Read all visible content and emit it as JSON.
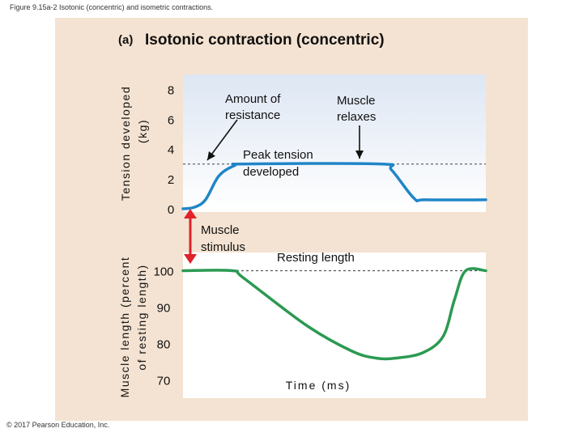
{
  "page": {
    "caption": "Figure 9.15a-2 Isotonic (concentric) and isometric contractions.",
    "copyright": "© 2017 Pearson Education, Inc."
  },
  "chart_data": {
    "type": "line",
    "panel_label": "(a)",
    "title": "Isotonic contraction (concentric)",
    "xlabel": "Time (ms)",
    "colors": {
      "panel": "#f4e3d2",
      "plot_top": "#dde6f3",
      "tension_line": "#1f86c8",
      "length_line": "#2b9a52",
      "stimulus_arrow": "#e0222a",
      "dashed": "#555555"
    },
    "top_panel": {
      "ylabel": [
        "Tension developed",
        "(kg)"
      ],
      "ylim": [
        0,
        9
      ],
      "ticks": [
        8,
        6,
        4,
        2,
        0
      ],
      "series": [
        {
          "name": "Tension developed",
          "points": [
            [
              0,
              0
            ],
            [
              0.5,
              0.1
            ],
            [
              1,
              0.6
            ],
            [
              1.6,
              2.2
            ],
            [
              2.3,
              2.9
            ],
            [
              2.8,
              3.0
            ],
            [
              8.8,
              3.0
            ],
            [
              9.3,
              2.6
            ],
            [
              10.3,
              0.7
            ],
            [
              10.8,
              0.6
            ],
            [
              13.5,
              0.6
            ]
          ]
        }
      ],
      "reference_line": 3.0,
      "annotations": {
        "resistance": "Amount of\nresistance",
        "relaxes": "Muscle\nrelaxes",
        "peak": "Peak tension\ndeveloped"
      }
    },
    "bottom_panel": {
      "ylabel": [
        "Muscle length (percent",
        "of resting length)"
      ],
      "ylim": [
        65,
        105
      ],
      "ticks": [
        100,
        90,
        80,
        70
      ],
      "series": [
        {
          "name": "Muscle length",
          "points": [
            [
              0,
              100
            ],
            [
              2.2,
              100
            ],
            [
              2.7,
              98
            ],
            [
              5.5,
              85
            ],
            [
              7.5,
              78
            ],
            [
              8.6,
              76
            ],
            [
              9.5,
              76
            ],
            [
              10.7,
              77.5
            ],
            [
              11.6,
              82
            ],
            [
              12.1,
              92
            ],
            [
              12.6,
              100
            ],
            [
              13.5,
              100
            ]
          ]
        }
      ],
      "reference_line": 100,
      "annotations": {
        "resting": "Resting length"
      }
    },
    "stimulus_label": "Muscle\nstimulus"
  }
}
